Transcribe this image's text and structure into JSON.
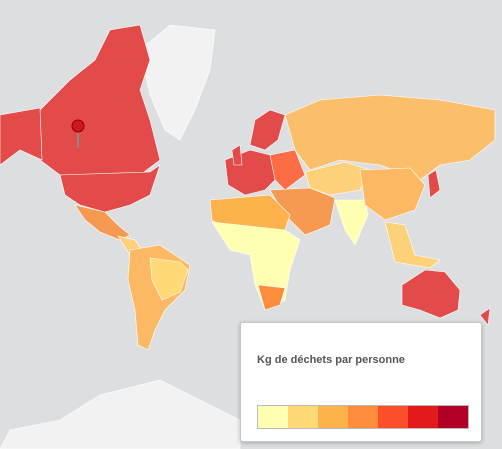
{
  "legend": {
    "title": "Kg de déchets par personne",
    "colors": [
      "#ffffb2",
      "#fed976",
      "#feb24c",
      "#fd8d3c",
      "#fc4e2a",
      "#e31a1c",
      "#b10026"
    ]
  }
}
